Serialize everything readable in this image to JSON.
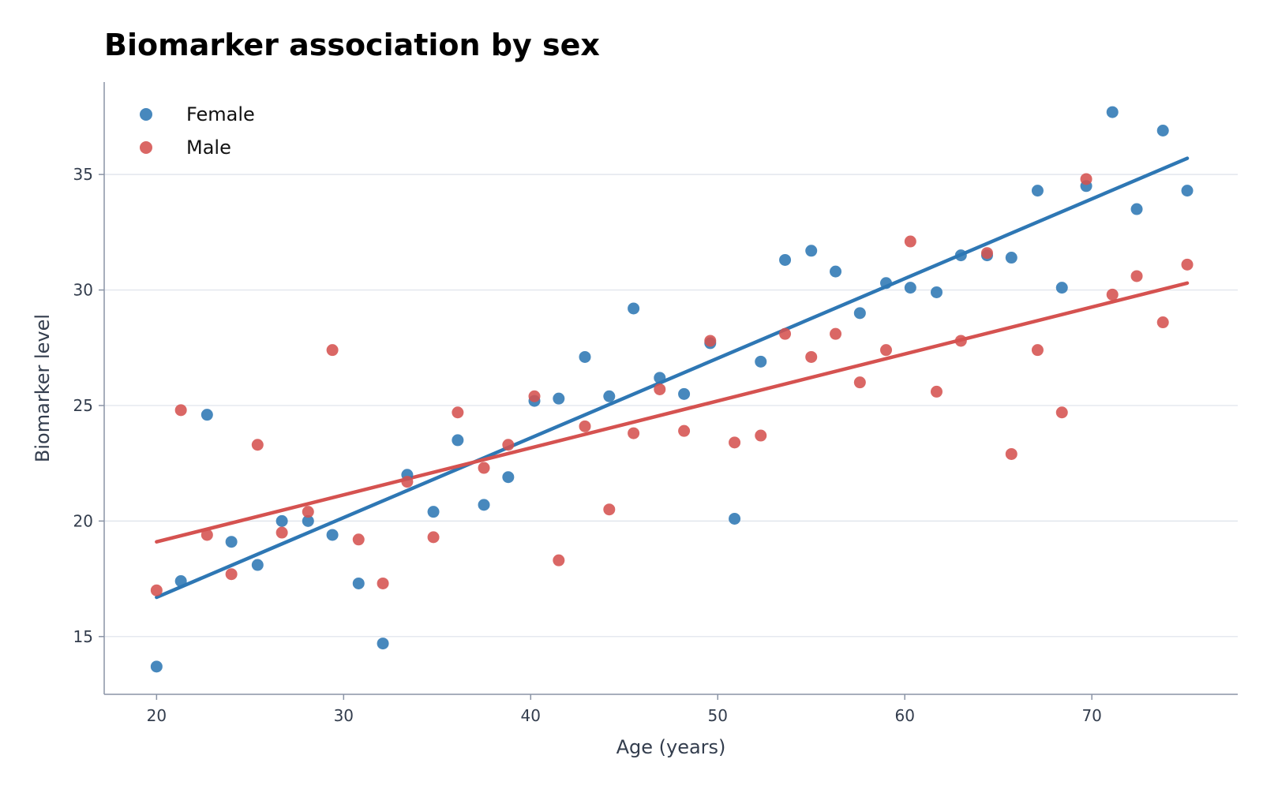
{
  "chart_data": {
    "type": "scatter",
    "title": "Biomarker association by sex",
    "xlabel": "Age (years)",
    "ylabel": "Biomarker level",
    "xlim": [
      17.2,
      77.8
    ],
    "ylim": [
      12.5,
      39.0
    ],
    "xticks": [
      20,
      30,
      40,
      50,
      60,
      70
    ],
    "yticks": [
      15,
      20,
      25,
      30,
      35
    ],
    "grid": "horizontal",
    "legend": "top-left",
    "series": [
      {
        "name": "Female",
        "color": "#2e77b4",
        "points": [
          [
            20.0,
            13.7
          ],
          [
            21.3,
            17.4
          ],
          [
            22.7,
            24.6
          ],
          [
            24.0,
            19.1
          ],
          [
            25.4,
            18.1
          ],
          [
            26.7,
            20.0
          ],
          [
            28.1,
            20.0
          ],
          [
            29.4,
            19.4
          ],
          [
            30.8,
            17.3
          ],
          [
            32.1,
            14.7
          ],
          [
            33.4,
            22.0
          ],
          [
            34.8,
            20.4
          ],
          [
            36.1,
            23.5
          ],
          [
            37.5,
            20.7
          ],
          [
            38.8,
            21.9
          ],
          [
            40.2,
            25.2
          ],
          [
            41.5,
            25.3
          ],
          [
            42.9,
            27.1
          ],
          [
            44.2,
            25.4
          ],
          [
            45.5,
            29.2
          ],
          [
            46.9,
            26.2
          ],
          [
            48.2,
            25.5
          ],
          [
            49.6,
            27.7
          ],
          [
            50.9,
            20.1
          ],
          [
            52.3,
            26.9
          ],
          [
            53.6,
            31.3
          ],
          [
            55.0,
            31.7
          ],
          [
            56.3,
            30.8
          ],
          [
            57.6,
            29.0
          ],
          [
            59.0,
            30.3
          ],
          [
            60.3,
            30.1
          ],
          [
            61.7,
            29.9
          ],
          [
            63.0,
            31.5
          ],
          [
            64.4,
            31.5
          ],
          [
            65.7,
            31.4
          ],
          [
            67.1,
            34.3
          ],
          [
            68.4,
            30.1
          ],
          [
            69.7,
            34.5
          ],
          [
            71.1,
            37.7
          ],
          [
            72.4,
            33.5
          ],
          [
            73.8,
            36.9
          ],
          [
            75.1,
            34.3
          ]
        ],
        "trend": [
          [
            20.0,
            16.7
          ],
          [
            75.1,
            35.7
          ]
        ]
      },
      {
        "name": "Male",
        "color": "#d55250",
        "points": [
          [
            20.0,
            17.0
          ],
          [
            21.3,
            24.8
          ],
          [
            22.7,
            19.4
          ],
          [
            24.0,
            17.7
          ],
          [
            25.4,
            23.3
          ],
          [
            26.7,
            19.5
          ],
          [
            28.1,
            20.4
          ],
          [
            29.4,
            27.4
          ],
          [
            30.8,
            19.2
          ],
          [
            32.1,
            17.3
          ],
          [
            33.4,
            21.7
          ],
          [
            34.8,
            19.3
          ],
          [
            36.1,
            24.7
          ],
          [
            37.5,
            22.3
          ],
          [
            38.8,
            23.3
          ],
          [
            40.2,
            25.4
          ],
          [
            41.5,
            18.3
          ],
          [
            42.9,
            24.1
          ],
          [
            44.2,
            20.5
          ],
          [
            45.5,
            23.8
          ],
          [
            46.9,
            25.7
          ],
          [
            48.2,
            23.9
          ],
          [
            49.6,
            27.8
          ],
          [
            50.9,
            23.4
          ],
          [
            52.3,
            23.7
          ],
          [
            53.6,
            28.1
          ],
          [
            55.0,
            27.1
          ],
          [
            56.3,
            28.1
          ],
          [
            57.6,
            26.0
          ],
          [
            59.0,
            27.4
          ],
          [
            60.3,
            32.1
          ],
          [
            61.7,
            25.6
          ],
          [
            63.0,
            27.8
          ],
          [
            64.4,
            31.6
          ],
          [
            65.7,
            22.9
          ],
          [
            67.1,
            27.4
          ],
          [
            68.4,
            24.7
          ],
          [
            69.7,
            34.8
          ],
          [
            71.1,
            29.8
          ],
          [
            72.4,
            30.6
          ],
          [
            73.8,
            28.6
          ],
          [
            75.1,
            31.1
          ]
        ],
        "trend": [
          [
            20.0,
            19.1
          ],
          [
            75.1,
            30.3
          ]
        ]
      }
    ]
  }
}
